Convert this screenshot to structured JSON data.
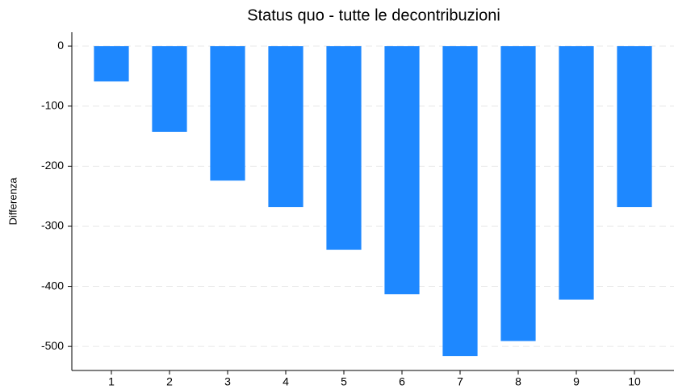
{
  "chart_data": {
    "type": "bar",
    "title": "Status quo - tutte le decontribuzioni",
    "ylabel": "Differenza",
    "categories": [
      "1",
      "2",
      "3",
      "4",
      "5",
      "6",
      "7",
      "8",
      "9",
      "10"
    ],
    "values": [
      -59,
      -143,
      -224,
      -268,
      -339,
      -413,
      -516,
      -491,
      -422,
      -268
    ],
    "color": "#1e88ff",
    "ylim": [
      -540,
      23
    ],
    "yticks": [
      0,
      -100,
      -200,
      -300,
      -400,
      -500
    ],
    "grid": true
  }
}
